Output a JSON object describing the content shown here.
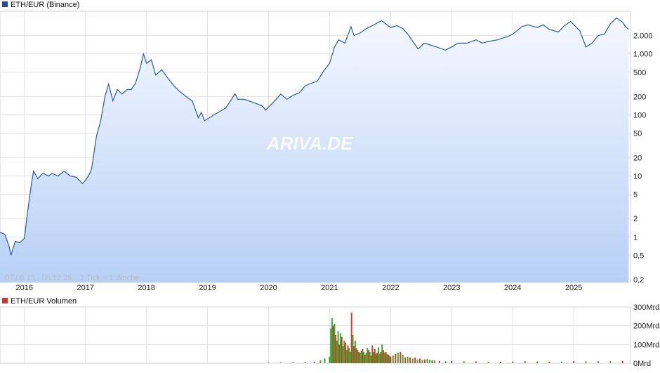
{
  "chart_data": [
    {
      "type": "area",
      "legend": "ETH/EUR (Binance)",
      "scale": "log",
      "ylim": [
        0.18,
        5000
      ],
      "y_ticks": [
        0.2,
        0.5,
        1,
        2,
        5,
        10,
        20,
        50,
        100,
        200,
        500,
        1000,
        2000
      ],
      "y_tick_labels": [
        "0,2",
        "0,5",
        "1",
        "2",
        "5",
        "10",
        "20",
        "50",
        "100",
        "200",
        "500",
        "1.000",
        "2.000"
      ],
      "x_ticks": [
        2016,
        2017,
        2018,
        2019,
        2020,
        2021,
        2022,
        2023,
        2024,
        2025
      ],
      "x_tick_labels": [
        "2016",
        "2017",
        "2018",
        "2019",
        "2020",
        "2021",
        "2022",
        "2023",
        "2024",
        "2025"
      ],
      "xlim": [
        2015.6,
        2025.93
      ],
      "grid": true,
      "date_range_label": "07.08.15 - 06.12.25",
      "interval_label": "1 Tick = 1 Woche",
      "watermark": "ARIVA.DE",
      "colors": {
        "line": "#2a5aa8",
        "fill_top": "#f4f8ff",
        "fill_bottom": "#b8d0f5",
        "legend_marker": "#1f4b9c"
      },
      "series": [
        {
          "name": "ETH/EUR (Binance)",
          "x": [
            2015.6,
            2015.68,
            2015.75,
            2015.78,
            2015.85,
            2015.92,
            2016.0,
            2016.05,
            2016.12,
            2016.15,
            2016.22,
            2016.3,
            2016.4,
            2016.45,
            2016.55,
            2016.65,
            2016.75,
            2016.85,
            2016.95,
            2017.0,
            2017.05,
            2017.1,
            2017.18,
            2017.25,
            2017.32,
            2017.38,
            2017.45,
            2017.52,
            2017.6,
            2017.68,
            2017.75,
            2017.82,
            2017.9,
            2017.95,
            2018.0,
            2018.08,
            2018.15,
            2018.25,
            2018.35,
            2018.45,
            2018.55,
            2018.65,
            2018.75,
            2018.85,
            2018.9,
            2018.95,
            2019.1,
            2019.3,
            2019.45,
            2019.5,
            2019.6,
            2019.75,
            2019.9,
            2019.95,
            2020.05,
            2020.2,
            2020.3,
            2020.4,
            2020.5,
            2020.6,
            2020.7,
            2020.8,
            2020.9,
            2021.0,
            2021.08,
            2021.15,
            2021.25,
            2021.35,
            2021.4,
            2021.5,
            2021.6,
            2021.7,
            2021.85,
            2022.0,
            2022.1,
            2022.2,
            2022.3,
            2022.45,
            2022.55,
            2022.65,
            2022.75,
            2022.9,
            2023.0,
            2023.1,
            2023.25,
            2023.4,
            2023.5,
            2023.6,
            2023.75,
            2023.9,
            2024.0,
            2024.15,
            2024.25,
            2024.4,
            2024.5,
            2024.6,
            2024.75,
            2024.85,
            2024.95,
            2025.0,
            2025.1,
            2025.2,
            2025.3,
            2025.4,
            2025.5,
            2025.6,
            2025.7,
            2025.8,
            2025.85,
            2025.9
          ],
          "values": [
            1.2,
            1.1,
            0.7,
            0.5,
            0.85,
            0.8,
            0.95,
            2.5,
            8,
            12,
            9,
            11,
            10,
            11,
            10,
            12,
            10,
            9.5,
            7.5,
            8.5,
            10,
            13,
            45,
            80,
            200,
            320,
            170,
            260,
            220,
            260,
            260,
            330,
            600,
            1000,
            700,
            800,
            450,
            550,
            400,
            300,
            240,
            200,
            170,
            90,
            110,
            80,
            100,
            130,
            220,
            180,
            180,
            160,
            140,
            120,
            150,
            220,
            180,
            210,
            230,
            300,
            330,
            360,
            520,
            700,
            1300,
            1700,
            1500,
            2800,
            2000,
            2200,
            2600,
            2900,
            3500,
            2700,
            2900,
            2600,
            2000,
            1200,
            1500,
            1400,
            1300,
            1150,
            1300,
            1500,
            1500,
            1700,
            1500,
            1600,
            1700,
            1900,
            2100,
            2800,
            3000,
            2700,
            3000,
            2500,
            2300,
            2900,
            3400,
            3000,
            2400,
            1300,
            1500,
            2000,
            2100,
            3100,
            3900,
            3300,
            2800,
            2500
          ]
        }
      ]
    },
    {
      "type": "bar",
      "legend": "ETH/EUR Volumen",
      "ylim": [
        0,
        300
      ],
      "y_ticks": [
        0,
        100,
        200,
        300
      ],
      "y_tick_labels": [
        "0Mrd",
        "100Mrd",
        "200Mrd",
        "300Mrd"
      ],
      "xlim": [
        2015.6,
        2025.93
      ],
      "grid": true,
      "colors": {
        "up": "#3aa832",
        "down": "#d23a2a",
        "legend_marker": "#c8372a"
      },
      "series": [
        {
          "name": "ETH/EUR Volumen",
          "x": [
            2020.0,
            2020.2,
            2020.4,
            2020.6,
            2020.75,
            2020.85,
            2020.92,
            2021.0,
            2021.02,
            2021.04,
            2021.06,
            2021.08,
            2021.1,
            2021.12,
            2021.14,
            2021.16,
            2021.18,
            2021.2,
            2021.22,
            2021.24,
            2021.26,
            2021.28,
            2021.3,
            2021.32,
            2021.34,
            2021.36,
            2021.38,
            2021.4,
            2021.42,
            2021.44,
            2021.46,
            2021.48,
            2021.5,
            2021.52,
            2021.54,
            2021.56,
            2021.58,
            2021.6,
            2021.62,
            2021.64,
            2021.66,
            2021.68,
            2021.7,
            2021.72,
            2021.74,
            2021.76,
            2021.78,
            2021.8,
            2021.82,
            2021.84,
            2021.86,
            2021.88,
            2021.9,
            2021.92,
            2021.94,
            2021.96,
            2021.98,
            2022.0,
            2022.04,
            2022.08,
            2022.12,
            2022.16,
            2022.2,
            2022.24,
            2022.28,
            2022.32,
            2022.36,
            2022.4,
            2022.44,
            2022.48,
            2022.52,
            2022.56,
            2022.6,
            2022.64,
            2022.68,
            2022.72,
            2022.8,
            2022.9,
            2023.0,
            2023.2,
            2023.4,
            2023.6,
            2023.8,
            2024.0,
            2024.2,
            2024.4,
            2024.6,
            2024.8,
            2025.0,
            2025.2,
            2025.4,
            2025.6,
            2025.8
          ],
          "values": [
            3,
            4,
            5,
            6,
            8,
            15,
            25,
            35,
            185,
            240,
            200,
            210,
            150,
            120,
            170,
            100,
            160,
            140,
            90,
            120,
            110,
            70,
            95,
            80,
            60,
            270,
            150,
            90,
            120,
            80,
            70,
            60,
            55,
            65,
            75,
            60,
            45,
            55,
            80,
            70,
            60,
            40,
            95,
            60,
            75,
            50,
            55,
            85,
            50,
            60,
            100,
            70,
            55,
            60,
            50,
            45,
            40,
            35,
            40,
            50,
            55,
            60,
            45,
            30,
            35,
            30,
            25,
            30,
            20,
            25,
            18,
            20,
            22,
            18,
            15,
            14,
            12,
            10,
            12,
            10,
            9,
            8,
            8,
            9,
            10,
            9,
            8,
            8,
            10,
            9,
            10,
            11,
            12
          ],
          "direction": [
            "up",
            "up",
            "up",
            "up",
            "up",
            "up",
            "up",
            "up",
            "up",
            "up",
            "down",
            "up",
            "down",
            "up",
            "up",
            "down",
            "up",
            "down",
            "up",
            "up",
            "down",
            "up",
            "down",
            "up",
            "up",
            "down",
            "up",
            "down",
            "up",
            "down",
            "up",
            "down",
            "up",
            "up",
            "down",
            "up",
            "down",
            "up",
            "up",
            "down",
            "up",
            "up",
            "down",
            "up",
            "down",
            "up",
            "down",
            "up",
            "up",
            "down",
            "up",
            "down",
            "up",
            "down",
            "up",
            "down",
            "up",
            "down",
            "up",
            "down",
            "up",
            "down",
            "up",
            "down",
            "up",
            "down",
            "up",
            "down",
            "up",
            "down",
            "up",
            "down",
            "up",
            "up",
            "down",
            "up",
            "down",
            "up",
            "down",
            "up",
            "down",
            "up",
            "down",
            "up",
            "down",
            "up",
            "down",
            "up",
            "down",
            "up",
            "down",
            "up",
            "down"
          ]
        }
      ]
    }
  ]
}
